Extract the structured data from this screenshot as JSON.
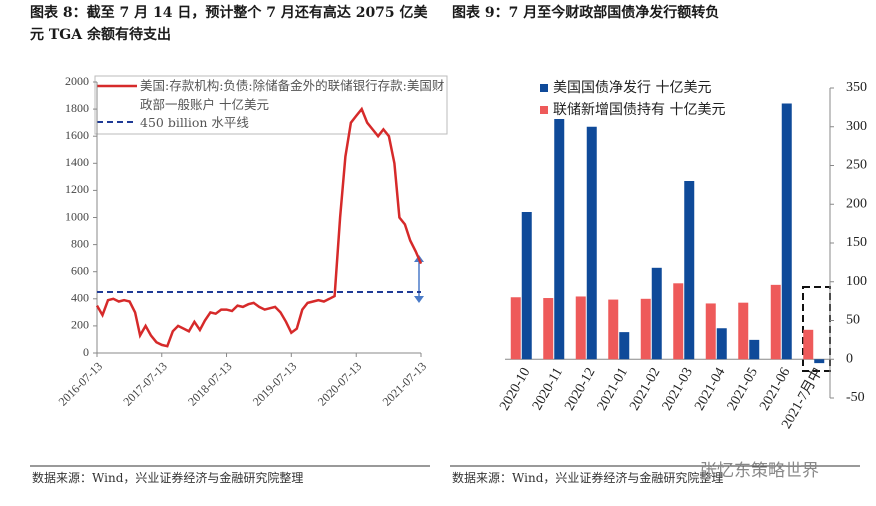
{
  "chart_data": [
    {
      "type": "line",
      "title": "图表 8：截至 7 月 14 日，预计整个 7 月还有高达 2075 亿美元 TGA 余额有待支出",
      "source": "数据来源：Wind，兴业证券经济与金融研究院整理",
      "x": [
        "2016-07-13",
        "2016-08-13",
        "2016-09-13",
        "2016-10-13",
        "2016-11-13",
        "2016-12-13",
        "2017-01-13",
        "2017-02-13",
        "2017-03-13",
        "2017-04-13",
        "2017-05-13",
        "2017-06-13",
        "2017-07-13",
        "2017-08-13",
        "2017-09-13",
        "2017-10-13",
        "2017-11-13",
        "2017-12-13",
        "2018-01-13",
        "2018-02-13",
        "2018-03-13",
        "2018-04-13",
        "2018-05-13",
        "2018-06-13",
        "2018-07-13",
        "2018-08-13",
        "2018-09-13",
        "2018-10-13",
        "2018-11-13",
        "2018-12-13",
        "2019-01-13",
        "2019-02-13",
        "2019-03-13",
        "2019-04-13",
        "2019-05-13",
        "2019-06-13",
        "2019-07-13",
        "2019-08-13",
        "2019-09-13",
        "2019-10-13",
        "2019-11-13",
        "2019-12-13",
        "2020-01-13",
        "2020-02-13",
        "2020-03-13",
        "2020-04-13",
        "2020-05-13",
        "2020-06-13",
        "2020-07-13",
        "2020-08-13",
        "2020-09-13",
        "2020-10-13",
        "2020-11-13",
        "2020-12-13",
        "2021-01-13",
        "2021-02-13",
        "2021-03-13",
        "2021-04-13",
        "2021-05-13",
        "2021-06-13",
        "2021-07-13"
      ],
      "series": [
        {
          "name": "美国:存款机构:负债:除储备金外的联储银行存款:美国财政部一般账户 十亿美元",
          "color": "#d62a2a",
          "values": [
            350,
            280,
            390,
            400,
            380,
            390,
            380,
            300,
            130,
            200,
            130,
            80,
            60,
            50,
            160,
            200,
            180,
            160,
            230,
            170,
            240,
            300,
            290,
            320,
            320,
            310,
            350,
            340,
            360,
            370,
            340,
            320,
            330,
            340,
            300,
            230,
            150,
            180,
            320,
            370,
            380,
            390,
            380,
            400,
            420,
            1000,
            1450,
            1700,
            1750,
            1800,
            1700,
            1650,
            1600,
            1650,
            1600,
            1400,
            1000,
            950,
            830,
            750,
            660
          ]
        },
        {
          "name": "450 billion 水平线",
          "color": "#1f3b96",
          "dashed": true,
          "x": [
            "2016-07-13",
            "2021-07-13"
          ],
          "values": [
            450,
            450
          ]
        }
      ],
      "xlim": [
        "2016-07-13",
        "2021-07-13"
      ],
      "xticks": [
        "2016-07-13",
        "2017-07-13",
        "2018-07-13",
        "2019-07-13",
        "2020-07-13",
        "2021-07-13"
      ],
      "ylim": [
        0,
        2000
      ],
      "yticks": [
        0,
        200,
        400,
        600,
        800,
        1000,
        1200,
        1400,
        1600,
        1800,
        2000
      ]
    },
    {
      "type": "bar",
      "title": "图表 9：7 月至今财政部国债净发行额转负",
      "source": "数据来源：Wind，兴业证券经济与金融研究院整理",
      "categories": [
        "2020-10",
        "2020-11",
        "2020-12",
        "2021-01",
        "2021-02",
        "2021-03",
        "2021-04",
        "2021-05",
        "2021-06",
        "2021-7月中"
      ],
      "series": [
        {
          "name": "美国国债净发行 十亿美元",
          "color": "#0f4a99",
          "values": [
            190,
            310,
            300,
            35,
            118,
            230,
            40,
            25,
            330,
            -5
          ]
        },
        {
          "name": "联储新增国债持有 十亿美元",
          "color": "#ee5a5a",
          "values": [
            80,
            79,
            81,
            77,
            78,
            98,
            72,
            73,
            96,
            38
          ]
        }
      ],
      "y_axis_position": "right",
      "ylim": [
        -50,
        350
      ],
      "yticks": [
        -50,
        0,
        50,
        100,
        150,
        200,
        250,
        300,
        350
      ]
    }
  ],
  "watermark": "张忆东策略世界"
}
